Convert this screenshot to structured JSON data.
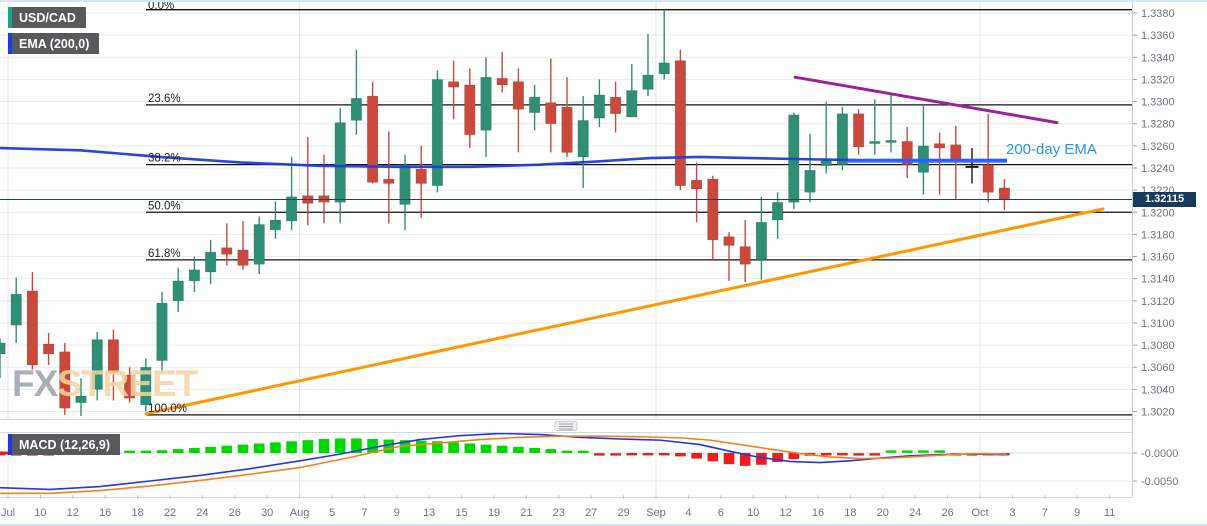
{
  "header": {
    "pair_label": "USD/CAD",
    "ema_indicator_label": "EMA (200,0)"
  },
  "watermark": {
    "fx": "FX",
    "street": "STREET"
  },
  "annotations": {
    "ema_callout": "200-day EMA"
  },
  "macd_panel": {
    "label": "MACD (12,26,9)",
    "axis_labels": [
      {
        "text": "-0.0000",
        "value": 0
      },
      {
        "text": "-0.0050",
        "value": -50
      }
    ]
  },
  "price_axis": {
    "labels": [
      "1.3380",
      "1.3360",
      "1.3340",
      "1.3320",
      "1.3300",
      "1.3280",
      "1.3260",
      "1.3240",
      "1.3220",
      "1.3200",
      "1.3180",
      "1.3160",
      "1.3140",
      "1.3120",
      "1.3100",
      "1.3080",
      "1.3060",
      "1.3040",
      "1.3020"
    ],
    "top_price": 1.338,
    "step": 0.002,
    "current_price": "1.32115"
  },
  "time_axis": {
    "labels": [
      "Jul",
      "10",
      "12",
      "16",
      "18",
      "22",
      "24",
      "26",
      "30",
      "Aug",
      "5",
      "7",
      "9",
      "13",
      "15",
      "19",
      "21",
      "23",
      "27",
      "29",
      "Sep",
      "4",
      "6",
      "10",
      "12",
      "16",
      "18",
      "20",
      "24",
      "26",
      "Oct",
      "3",
      "7",
      "9",
      "11"
    ],
    "month_indices": [
      0,
      9,
      20,
      30
    ]
  },
  "fib_levels": [
    {
      "label": "0.0%",
      "price": 1.3383
    },
    {
      "label": "23.6%",
      "price": 1.3297
    },
    {
      "label": "38.2%",
      "price": 1.3243
    },
    {
      "label": "50.0%",
      "price": 1.32
    },
    {
      "label": "61.8%",
      "price": 1.3157
    },
    {
      "label": "100.0%",
      "price": 1.3017
    }
  ],
  "colors": {
    "bull": "#2f8f75",
    "bear": "#c94a3d",
    "doji": "#1a1a1a",
    "ema": "#1d3be0",
    "ema_annotation": "#2962ff",
    "macd_line": "#2136e8",
    "signal_line": "#f5811e",
    "hist_up": "#00d900",
    "hist_down": "#ef1c1c",
    "trend_support": "#ff9800",
    "trend_resistance": "#9c1f9c",
    "price_line": "#27415f",
    "price_badge_bg": "#17395e",
    "fib": "#111111",
    "grid": "#ebebef",
    "vgrid": "#e6e6ec",
    "axis_text": "#70757c",
    "border": "#d4d9e0"
  },
  "chart_data": {
    "type": "candlestick",
    "title": "USD/CAD daily with EMA(200,0), Fibonacci retracement, trendlines and MACD(12,26,9)",
    "y_range": [
      1.3015,
      1.339
    ],
    "current_price": 1.32115,
    "candles_ohlc": [
      [
        1.3072,
        1.3086,
        1.305,
        1.3082
      ],
      [
        1.3098,
        1.3141,
        1.3082,
        1.3126
      ],
      [
        1.3129,
        1.3146,
        1.3058,
        1.3062
      ],
      [
        1.3081,
        1.3091,
        1.3062,
        1.3072
      ],
      [
        1.3074,
        1.3082,
        1.3017,
        1.3023
      ],
      [
        1.3028,
        1.305,
        1.3016,
        1.3034
      ],
      [
        1.304,
        1.3092,
        1.303,
        1.3085
      ],
      [
        1.3085,
        1.3094,
        1.303,
        1.3055
      ],
      [
        1.3053,
        1.306,
        1.3028,
        1.3032
      ],
      [
        1.3026,
        1.3068,
        1.302,
        1.306
      ],
      [
        1.3066,
        1.3128,
        1.3055,
        1.3118
      ],
      [
        1.312,
        1.315,
        1.311,
        1.3138
      ],
      [
        1.3138,
        1.316,
        1.3128,
        1.3148
      ],
      [
        1.3146,
        1.3175,
        1.3135,
        1.3164
      ],
      [
        1.3168,
        1.319,
        1.3152,
        1.3162
      ],
      [
        1.3166,
        1.3192,
        1.3148,
        1.3152
      ],
      [
        1.3153,
        1.3196,
        1.3144,
        1.3189
      ],
      [
        1.3184,
        1.321,
        1.3176,
        1.3193
      ],
      [
        1.3192,
        1.325,
        1.3184,
        1.3214
      ],
      [
        1.3215,
        1.3268,
        1.3188,
        1.3208
      ],
      [
        1.3215,
        1.3252,
        1.319,
        1.3209
      ],
      [
        1.3209,
        1.3294,
        1.319,
        1.3281
      ],
      [
        1.3283,
        1.3347,
        1.327,
        1.3303
      ],
      [
        1.3305,
        1.3318,
        1.3226,
        1.3227
      ],
      [
        1.323,
        1.3273,
        1.319,
        1.3226
      ],
      [
        1.3207,
        1.3252,
        1.3184,
        1.3243
      ],
      [
        1.3239,
        1.326,
        1.3195,
        1.3226
      ],
      [
        1.3224,
        1.3328,
        1.3218,
        1.332
      ],
      [
        1.3318,
        1.3337,
        1.3284,
        1.3313
      ],
      [
        1.3315,
        1.333,
        1.3258,
        1.327
      ],
      [
        1.3274,
        1.334,
        1.325,
        1.3322
      ],
      [
        1.3321,
        1.3345,
        1.3308,
        1.3315
      ],
      [
        1.3318,
        1.333,
        1.3254,
        1.3293
      ],
      [
        1.329,
        1.3315,
        1.3274,
        1.3304
      ],
      [
        1.3299,
        1.3339,
        1.3254,
        1.328
      ],
      [
        1.3295,
        1.3322,
        1.325,
        1.3254
      ],
      [
        1.325,
        1.3305,
        1.3222,
        1.3283
      ],
      [
        1.3285,
        1.332,
        1.3277,
        1.3306
      ],
      [
        1.3304,
        1.3318,
        1.3272,
        1.3289
      ],
      [
        1.3286,
        1.3334,
        1.3286,
        1.331
      ],
      [
        1.3311,
        1.3361,
        1.3305,
        1.3324
      ],
      [
        1.3325,
        1.3383,
        1.332,
        1.3335
      ],
      [
        1.3337,
        1.3347,
        1.322,
        1.3224
      ],
      [
        1.3229,
        1.3245,
        1.3191,
        1.3221
      ],
      [
        1.323,
        1.3233,
        1.3157,
        1.3175
      ],
      [
        1.3178,
        1.3182,
        1.3138,
        1.317
      ],
      [
        1.3169,
        1.3193,
        1.3137,
        1.3153
      ],
      [
        1.3157,
        1.3214,
        1.3139,
        1.3191
      ],
      [
        1.3193,
        1.3218,
        1.3176,
        1.3209
      ],
      [
        1.3209,
        1.329,
        1.3203,
        1.3288
      ],
      [
        1.3218,
        1.3271,
        1.3209,
        1.3238
      ],
      [
        1.3242,
        1.33,
        1.3235,
        1.3247
      ],
      [
        1.3243,
        1.3295,
        1.3238,
        1.3289
      ],
      [
        1.3289,
        1.3293,
        1.3252,
        1.3259
      ],
      [
        1.3262,
        1.3302,
        1.3252,
        1.3264
      ],
      [
        1.3263,
        1.3306,
        1.3254,
        1.3265
      ],
      [
        1.3264,
        1.3277,
        1.3231,
        1.3243
      ],
      [
        1.3236,
        1.3298,
        1.3216,
        1.326
      ],
      [
        1.3262,
        1.3272,
        1.3216,
        1.3258
      ],
      [
        1.3261,
        1.3278,
        1.3212,
        1.3247
      ],
      [
        1.3241,
        1.3258,
        1.3226,
        1.3241
      ],
      [
        1.3243,
        1.3289,
        1.3209,
        1.3218
      ],
      [
        1.3222,
        1.323,
        1.3202,
        1.32115
      ]
    ],
    "ema_points": [
      [
        0,
        1.3258
      ],
      [
        80,
        1.3256
      ],
      [
        160,
        1.325
      ],
      [
        240,
        1.3245
      ],
      [
        320,
        1.3242
      ],
      [
        400,
        1.3241
      ],
      [
        470,
        1.3241
      ],
      [
        540,
        1.3243
      ],
      [
        600,
        1.3246
      ],
      [
        650,
        1.3249
      ],
      [
        700,
        1.325
      ],
      [
        750,
        1.3249
      ],
      [
        800,
        1.3248
      ],
      [
        860,
        1.3247
      ],
      [
        920,
        1.3247
      ],
      [
        1007,
        1.3247
      ]
    ],
    "ema_annotation": {
      "x1": 848,
      "x2": 1007,
      "price": 1.32465
    },
    "trendlines": [
      {
        "name": "ascending-support",
        "color_key": "trend_support",
        "from": [
          146,
          1.3018
        ],
        "to": [
          1103,
          1.3203
        ]
      },
      {
        "name": "descending-resistance",
        "color_key": "trend_resistance",
        "from": [
          795,
          1.3322
        ],
        "to": [
          1057,
          1.3281
        ]
      }
    ],
    "macd": {
      "histogram_1e4": [
        -2,
        -1.5,
        -1,
        -0.5,
        0.5,
        1,
        1.5,
        2,
        2.5,
        3,
        5,
        7,
        9,
        11,
        13,
        15,
        17,
        19,
        21,
        23,
        25,
        26,
        26,
        25,
        24,
        23,
        22,
        21,
        19,
        17,
        15,
        13,
        11,
        9,
        7,
        4,
        2,
        -1,
        -1.5,
        -2,
        -2,
        -3,
        -6,
        -10,
        -15,
        -20,
        -23,
        -21,
        -16,
        -11,
        -5,
        -3,
        -2.5,
        -1.5,
        -1,
        1,
        1.5,
        1.5,
        1,
        -0.5,
        -1.5,
        -2,
        -2.5
      ],
      "macd_line_1e4": [
        [
          0,
          -62
        ],
        [
          50,
          -65
        ],
        [
          100,
          -60
        ],
        [
          150,
          -50
        ],
        [
          200,
          -40
        ],
        [
          250,
          -28
        ],
        [
          300,
          -14
        ],
        [
          340,
          -2
        ],
        [
          380,
          12
        ],
        [
          420,
          24
        ],
        [
          460,
          31
        ],
        [
          500,
          35
        ],
        [
          540,
          33
        ],
        [
          580,
          28
        ],
        [
          620,
          25
        ],
        [
          660,
          23
        ],
        [
          700,
          15
        ],
        [
          730,
          3
        ],
        [
          760,
          -8
        ],
        [
          790,
          -15
        ],
        [
          820,
          -17
        ],
        [
          850,
          -14
        ],
        [
          880,
          -9
        ],
        [
          910,
          -5
        ],
        [
          940,
          -3
        ],
        [
          970,
          -2
        ],
        [
          1007,
          -3
        ]
      ],
      "signal_line_1e4": [
        [
          0,
          -72
        ],
        [
          50,
          -72
        ],
        [
          100,
          -67
        ],
        [
          150,
          -59
        ],
        [
          200,
          -49
        ],
        [
          250,
          -38
        ],
        [
          300,
          -26
        ],
        [
          350,
          -8
        ],
        [
          400,
          12
        ],
        [
          440,
          18
        ],
        [
          480,
          24
        ],
        [
          520,
          28
        ],
        [
          560,
          30
        ],
        [
          600,
          30
        ],
        [
          640,
          29
        ],
        [
          680,
          27
        ],
        [
          710,
          23
        ],
        [
          740,
          15
        ],
        [
          770,
          7
        ],
        [
          800,
          -1
        ],
        [
          830,
          -7
        ],
        [
          860,
          -10
        ],
        [
          890,
          -9
        ],
        [
          920,
          -6
        ],
        [
          950,
          -3
        ],
        [
          980,
          -1
        ],
        [
          1007,
          -2
        ]
      ]
    }
  }
}
